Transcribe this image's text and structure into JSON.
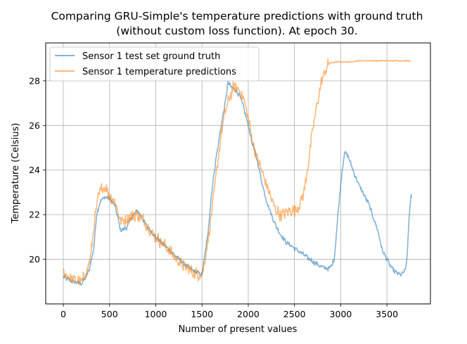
{
  "chart_data": {
    "type": "line",
    "title": "Comparing GRU-Simple's temperature predictions with ground truth",
    "subtitle": "(without custom loss function). At epoch 30.",
    "xlabel": "Number of present values",
    "ylabel": "Temperature (Celsius)",
    "xlim": [
      -190,
      3970
    ],
    "ylim": [
      18.0,
      29.7
    ],
    "xticks": [
      0,
      500,
      1000,
      1500,
      2000,
      2500,
      3000,
      3500
    ],
    "yticks": [
      20,
      22,
      24,
      26,
      28
    ],
    "xtick_labels": [
      "0",
      "500",
      "1000",
      "1500",
      "2000",
      "2500",
      "3000",
      "3500"
    ],
    "ytick_labels": [
      "20",
      "22",
      "24",
      "26",
      "28"
    ],
    "grid": true,
    "legend_position": "top-left",
    "series": [
      {
        "name": "Sensor 1 test set ground truth",
        "color": "#1f77b4",
        "noise": 0.08,
        "x": [
          0,
          100,
          200,
          280,
          330,
          360,
          400,
          450,
          500,
          560,
          620,
          680,
          740,
          800,
          860,
          900,
          1000,
          1100,
          1200,
          1300,
          1400,
          1500,
          1520,
          1560,
          1600,
          1640,
          1700,
          1750,
          1780,
          1820,
          1860,
          1900,
          1950,
          2000,
          2050,
          2100,
          2150,
          2200,
          2250,
          2300,
          2350,
          2400,
          2500,
          2600,
          2700,
          2800,
          2850,
          2880,
          2900,
          2930,
          2960,
          3000,
          3030,
          3050,
          3080,
          3100,
          3150,
          3200,
          3300,
          3400,
          3450,
          3500,
          3550,
          3600,
          3650,
          3700,
          3720,
          3740,
          3760,
          3770
        ],
        "y": [
          19.2,
          19.0,
          18.9,
          19.5,
          20.5,
          22.0,
          22.6,
          22.8,
          22.7,
          22.4,
          21.3,
          21.4,
          21.9,
          22.2,
          21.8,
          21.5,
          21.0,
          20.6,
          20.2,
          19.8,
          19.5,
          19.3,
          19.9,
          21.0,
          22.8,
          24.2,
          25.8,
          27.0,
          27.9,
          27.7,
          27.6,
          27.4,
          26.8,
          26.0,
          25.1,
          24.4,
          23.4,
          22.6,
          22.0,
          21.5,
          21.1,
          20.8,
          20.5,
          20.2,
          19.9,
          19.65,
          19.6,
          19.6,
          19.7,
          20.0,
          21.5,
          23.4,
          24.5,
          24.8,
          24.6,
          24.4,
          23.8,
          23.3,
          22.5,
          21.3,
          20.4,
          20.0,
          19.6,
          19.4,
          19.3,
          19.5,
          20.2,
          22.0,
          22.8,
          22.8
        ]
      },
      {
        "name": "Sensor 1 temperature predictions",
        "color": "#ff7f0e",
        "noise": 0.2,
        "x": [
          0,
          100,
          200,
          260,
          300,
          340,
          380,
          420,
          460,
          500,
          560,
          620,
          680,
          740,
          800,
          860,
          920,
          1000,
          1100,
          1200,
          1300,
          1400,
          1500,
          1540,
          1580,
          1620,
          1660,
          1700,
          1750,
          1800,
          1850,
          1900,
          1950,
          2000,
          2050,
          2100,
          2150,
          2200,
          2250,
          2300,
          2350,
          2400,
          2450,
          2500,
          2550,
          2600,
          2650,
          2700,
          2750,
          2800,
          2850,
          2880,
          2950,
          3000,
          3100,
          3200,
          3300,
          3500,
          3700,
          3760
        ],
        "y": [
          19.4,
          19.1,
          19.0,
          19.5,
          20.2,
          21.8,
          22.8,
          23.2,
          23.2,
          22.9,
          22.6,
          21.7,
          21.8,
          22.0,
          22.0,
          21.8,
          21.4,
          21.0,
          20.6,
          20.1,
          19.7,
          19.4,
          19.3,
          20.2,
          21.3,
          22.6,
          24.0,
          25.4,
          26.6,
          27.3,
          27.8,
          27.6,
          27.2,
          26.3,
          25.2,
          24.5,
          23.9,
          23.3,
          22.7,
          22.2,
          22.0,
          22.1,
          22.2,
          22.2,
          22.4,
          23.0,
          24.3,
          25.9,
          27.1,
          28.1,
          28.6,
          28.8,
          28.85,
          28.85,
          28.85,
          28.9,
          28.9,
          28.9,
          28.9,
          28.9
        ]
      }
    ]
  }
}
